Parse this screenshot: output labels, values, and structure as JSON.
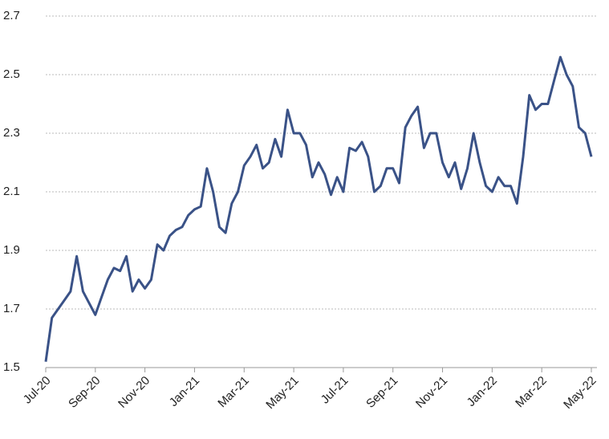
{
  "chart_data": {
    "type": "line",
    "categories": [
      "Jul-20",
      null,
      null,
      null,
      null,
      null,
      null,
      null,
      "Sep-20",
      null,
      null,
      null,
      null,
      null,
      null,
      null,
      "Nov-20",
      null,
      null,
      null,
      null,
      null,
      null,
      null,
      "Jan-21",
      null,
      null,
      null,
      null,
      null,
      null,
      null,
      "Mar-21",
      null,
      null,
      null,
      null,
      null,
      null,
      null,
      "May-21",
      null,
      null,
      null,
      null,
      null,
      null,
      null,
      "Jul-21",
      null,
      null,
      null,
      null,
      null,
      null,
      null,
      "Sep-21",
      null,
      null,
      null,
      null,
      null,
      null,
      null,
      "Nov-21",
      null,
      null,
      null,
      null,
      null,
      null,
      null,
      "Jan-22",
      null,
      null,
      null,
      null,
      null,
      null,
      null,
      "Mar-22",
      null,
      null,
      null,
      null,
      null,
      null,
      null,
      "May-22"
    ],
    "series": [
      {
        "color": "#3a5287",
        "values": [
          1.52,
          1.67,
          1.7,
          1.73,
          1.76,
          1.88,
          1.76,
          1.72,
          1.68,
          1.74,
          1.8,
          1.84,
          1.83,
          1.88,
          1.76,
          1.8,
          1.77,
          1.8,
          1.92,
          1.9,
          1.95,
          1.97,
          1.98,
          2.02,
          2.04,
          2.05,
          2.18,
          2.1,
          1.98,
          1.96,
          2.06,
          2.1,
          2.19,
          2.22,
          2.26,
          2.18,
          2.2,
          2.28,
          2.22,
          2.38,
          2.3,
          2.3,
          2.26,
          2.15,
          2.2,
          2.16,
          2.09,
          2.15,
          2.1,
          2.25,
          2.24,
          2.27,
          2.22,
          2.1,
          2.12,
          2.18,
          2.18,
          2.13,
          2.32,
          2.36,
          2.39,
          2.25,
          2.3,
          2.3,
          2.2,
          2.15,
          2.2,
          2.11,
          2.18,
          2.3,
          2.2,
          2.12,
          2.1,
          2.15,
          2.12,
          2.12,
          2.06,
          2.22,
          2.43,
          2.38,
          2.4,
          2.4,
          2.48,
          2.56,
          2.5,
          2.46,
          2.32,
          2.3,
          2.22
        ]
      }
    ],
    "ylim": [
      1.5,
      2.7
    ],
    "yticks": [
      1.5,
      1.7,
      1.9,
      2.1,
      2.3,
      2.5,
      2.7
    ],
    "grid": true
  }
}
